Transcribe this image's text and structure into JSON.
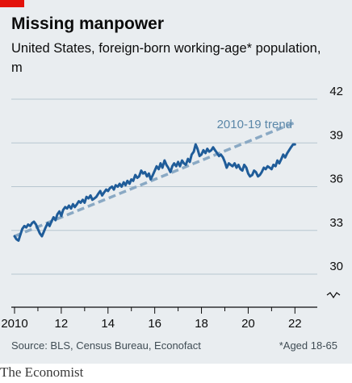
{
  "header": {
    "title": "Missing manpower",
    "subtitle": "United States, foreign-born working-age* population, m"
  },
  "footer": {
    "source": "Source: BLS, Census Bureau, Econofact",
    "note": "*Aged 18-65",
    "brand": "The Economist"
  },
  "colors": {
    "accent": "#e3120b",
    "series": "#1f5c99",
    "trend": "#8aa9c4",
    "background": "#e9edf0"
  },
  "chart_data": {
    "type": "line",
    "ylim": [
      30,
      42
    ],
    "yticks": [
      30,
      33,
      36,
      39,
      42
    ],
    "ytick_labels": [
      "30",
      "33",
      "36",
      "39",
      "42"
    ],
    "xlim": [
      2010,
      2022.3
    ],
    "xticks": [
      2010,
      2012,
      2014,
      2016,
      2018,
      2020,
      2022
    ],
    "xtick_labels": [
      "2010",
      "12",
      "14",
      "16",
      "18",
      "20",
      "22"
    ],
    "broken_axis_below": 30,
    "grid": true,
    "series": [
      {
        "x": [
          2010.0,
          2010.08,
          2010.17,
          2010.25,
          2010.33,
          2010.42,
          2010.5,
          2010.58,
          2010.67,
          2010.75,
          2010.83,
          2010.92,
          2011.0,
          2011.08,
          2011.17,
          2011.25,
          2011.33,
          2011.42,
          2011.5,
          2011.58,
          2011.67,
          2011.75,
          2011.83,
          2011.92,
          2012.0,
          2012.08,
          2012.17,
          2012.25,
          2012.33,
          2012.42,
          2012.5,
          2012.58,
          2012.67,
          2012.75,
          2012.83,
          2012.92,
          2013.0,
          2013.08,
          2013.17,
          2013.25,
          2013.33,
          2013.42,
          2013.5,
          2013.58,
          2013.67,
          2013.75,
          2013.83,
          2013.92,
          2014.0,
          2014.08,
          2014.17,
          2014.25,
          2014.33,
          2014.42,
          2014.5,
          2014.58,
          2014.67,
          2014.75,
          2014.83,
          2014.92,
          2015.0,
          2015.08,
          2015.17,
          2015.25,
          2015.33,
          2015.42,
          2015.5,
          2015.58,
          2015.67,
          2015.75,
          2015.83,
          2015.92,
          2016.0,
          2016.08,
          2016.17,
          2016.25,
          2016.33,
          2016.42,
          2016.5,
          2016.58,
          2016.67,
          2016.75,
          2016.83,
          2016.92,
          2017.0,
          2017.08,
          2017.17,
          2017.25,
          2017.33,
          2017.42,
          2017.5,
          2017.58,
          2017.67,
          2017.75,
          2017.83,
          2017.92,
          2018.0,
          2018.08,
          2018.17,
          2018.25,
          2018.33,
          2018.42,
          2018.5,
          2018.58,
          2018.67,
          2018.75,
          2018.83,
          2018.92,
          2019.0,
          2019.08,
          2019.17,
          2019.25,
          2019.33,
          2019.42,
          2019.5,
          2019.58,
          2019.67,
          2019.75,
          2019.83,
          2019.92,
          2020.0,
          2020.08,
          2020.17,
          2020.25,
          2020.33,
          2020.42,
          2020.5,
          2020.58,
          2020.67,
          2020.75,
          2020.83,
          2020.92,
          2021.0,
          2021.08,
          2021.17,
          2021.25,
          2021.33,
          2021.42,
          2021.5,
          2021.58,
          2021.67,
          2021.75,
          2021.83,
          2021.92,
          2022.0
        ],
        "values": [
          32.6,
          32.4,
          32.3,
          32.7,
          33.1,
          33.3,
          33.2,
          33.4,
          33.3,
          33.5,
          33.6,
          33.4,
          33.1,
          32.8,
          32.6,
          32.9,
          33.2,
          33.5,
          33.3,
          33.6,
          33.9,
          33.7,
          34.1,
          34.3,
          34.0,
          34.4,
          34.6,
          34.5,
          34.7,
          34.5,
          34.8,
          34.6,
          34.8,
          35.0,
          34.9,
          35.1,
          34.9,
          35.3,
          35.2,
          35.4,
          35.1,
          35.2,
          35.3,
          35.5,
          35.7,
          35.4,
          35.6,
          35.8,
          35.7,
          35.9,
          36.0,
          35.8,
          36.1,
          36.0,
          36.2,
          36.0,
          36.3,
          36.1,
          36.4,
          36.2,
          36.5,
          36.4,
          36.8,
          36.6,
          36.7,
          37.1,
          36.9,
          37.0,
          36.7,
          36.9,
          36.5,
          36.8,
          37.1,
          37.4,
          37.2,
          37.6,
          37.3,
          37.8,
          37.5,
          37.3,
          37.0,
          37.4,
          37.6,
          37.4,
          37.7,
          37.4,
          37.8,
          37.6,
          37.5,
          37.9,
          37.7,
          38.2,
          38.4,
          38.9,
          38.6,
          38.1,
          38.2,
          38.5,
          38.3,
          38.6,
          38.4,
          38.5,
          38.7,
          38.5,
          38.3,
          38.1,
          38.2,
          38.0,
          37.7,
          37.3,
          37.6,
          37.5,
          37.4,
          37.6,
          37.3,
          37.5,
          37.2,
          37.1,
          37.5,
          37.3,
          36.9,
          36.7,
          36.8,
          37.1,
          37.0,
          36.7,
          36.8,
          37.0,
          37.3,
          37.2,
          37.4,
          37.3,
          37.2,
          37.5,
          37.4,
          37.8,
          37.6,
          37.9,
          38.2,
          38.0,
          38.3,
          38.5,
          38.7,
          38.9,
          38.9
        ]
      },
      {
        "name": "2010-19 trend",
        "style": "dashed",
        "x": [
          2010.0,
          2022.0
        ],
        "values": [
          32.6,
          40.4
        ]
      }
    ]
  }
}
